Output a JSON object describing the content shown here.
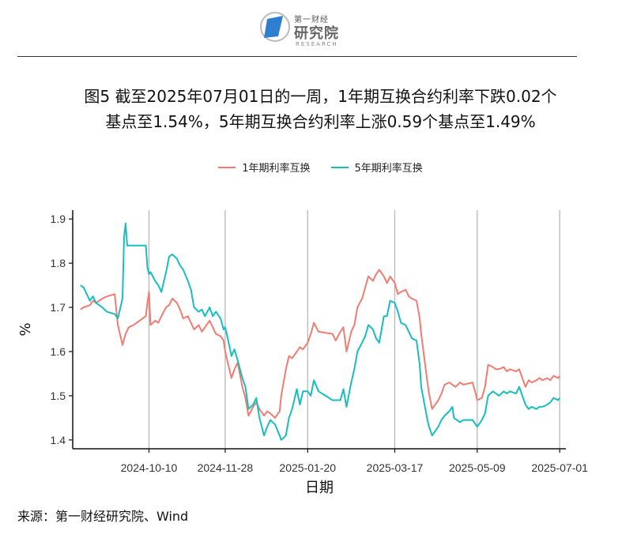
{
  "header": {
    "logo_small": "第一财经",
    "logo_big": "研究院",
    "logo_sub": "RESEARCH"
  },
  "title": {
    "line1": "图5  截至2025年07月01日的一周，1年期互换合约利率下跌0.02个",
    "line2": "基点至1.54%，5年期互换合约利率上涨0.59个基点至1.49%"
  },
  "source": "来源：第一财经研究院、Wind",
  "colors": {
    "series1": "#F07C73",
    "series2": "#18BDBE",
    "axis": "#111111",
    "grid": "#B3B3B3"
  },
  "chart_data": {
    "type": "line",
    "title": "",
    "xlabel": "日期",
    "ylabel": "%",
    "ylim": [
      1.38,
      1.92
    ],
    "yticks": [
      1.4,
      1.5,
      1.6,
      1.7,
      1.8,
      1.9
    ],
    "xlim": [
      "2024-08-22",
      "2025-07-05"
    ],
    "xticks": [
      "2024-10-10",
      "2024-11-28",
      "2025-01-20",
      "2025-03-17",
      "2025-05-09",
      "2025-07-01"
    ],
    "grid": "vertical",
    "legend_position": "top",
    "series": [
      {
        "name": "1年期利率互换",
        "color": "#F07C73",
        "points": [
          [
            "2024-08-27",
            1.695
          ],
          [
            "2024-08-29",
            1.7
          ],
          [
            "2024-09-02",
            1.705
          ],
          [
            "2024-09-04",
            1.715
          ],
          [
            "2024-09-06",
            1.71
          ],
          [
            "2024-09-10",
            1.72
          ],
          [
            "2024-09-13",
            1.725
          ],
          [
            "2024-09-18",
            1.73
          ],
          [
            "2024-09-20",
            1.66
          ],
          [
            "2024-09-23",
            1.615
          ],
          [
            "2024-09-25",
            1.64
          ],
          [
            "2024-09-27",
            1.655
          ],
          [
            "2024-09-30",
            1.66
          ],
          [
            "2024-10-08",
            1.68
          ],
          [
            "2024-10-09",
            1.71
          ],
          [
            "2024-10-10",
            1.735
          ],
          [
            "2024-10-11",
            1.66
          ],
          [
            "2024-10-14",
            1.67
          ],
          [
            "2024-10-16",
            1.665
          ],
          [
            "2024-10-18",
            1.68
          ],
          [
            "2024-10-21",
            1.7
          ],
          [
            "2024-10-23",
            1.705
          ],
          [
            "2024-10-25",
            1.72
          ],
          [
            "2024-10-28",
            1.71
          ],
          [
            "2024-10-30",
            1.695
          ],
          [
            "2024-11-01",
            1.675
          ],
          [
            "2024-11-04",
            1.68
          ],
          [
            "2024-11-06",
            1.665
          ],
          [
            "2024-11-08",
            1.65
          ],
          [
            "2024-11-11",
            1.66
          ],
          [
            "2024-11-13",
            1.645
          ],
          [
            "2024-11-15",
            1.655
          ],
          [
            "2024-11-18",
            1.67
          ],
          [
            "2024-11-20",
            1.655
          ],
          [
            "2024-11-22",
            1.64
          ],
          [
            "2024-11-25",
            1.635
          ],
          [
            "2024-11-27",
            1.625
          ],
          [
            "2024-11-28",
            1.6
          ],
          [
            "2024-11-29",
            1.585
          ],
          [
            "2024-12-02",
            1.54
          ],
          [
            "2024-12-04",
            1.56
          ],
          [
            "2024-12-06",
            1.575
          ],
          [
            "2024-12-09",
            1.52
          ],
          [
            "2024-12-11",
            1.495
          ],
          [
            "2024-12-13",
            1.455
          ],
          [
            "2024-12-16",
            1.475
          ],
          [
            "2024-12-18",
            1.485
          ],
          [
            "2024-12-20",
            1.47
          ],
          [
            "2024-12-23",
            1.455
          ],
          [
            "2024-12-25",
            1.465
          ],
          [
            "2024-12-27",
            1.46
          ],
          [
            "2024-12-30",
            1.45
          ],
          [
            "2025-01-02",
            1.465
          ],
          [
            "2025-01-03",
            1.5
          ],
          [
            "2025-01-06",
            1.56
          ],
          [
            "2025-01-08",
            1.59
          ],
          [
            "2025-01-10",
            1.585
          ],
          [
            "2025-01-13",
            1.6
          ],
          [
            "2025-01-15",
            1.61
          ],
          [
            "2025-01-17",
            1.605
          ],
          [
            "2025-01-20",
            1.62
          ],
          [
            "2025-01-22",
            1.64
          ],
          [
            "2025-01-24",
            1.665
          ],
          [
            "2025-01-27",
            1.645
          ],
          [
            "2025-02-05",
            1.64
          ],
          [
            "2025-02-07",
            1.625
          ],
          [
            "2025-02-10",
            1.645
          ],
          [
            "2025-02-12",
            1.655
          ],
          [
            "2025-02-14",
            1.6
          ],
          [
            "2025-02-17",
            1.645
          ],
          [
            "2025-02-19",
            1.66
          ],
          [
            "2025-02-21",
            1.7
          ],
          [
            "2025-02-24",
            1.72
          ],
          [
            "2025-02-26",
            1.745
          ],
          [
            "2025-02-28",
            1.77
          ],
          [
            "2025-03-03",
            1.76
          ],
          [
            "2025-03-05",
            1.775
          ],
          [
            "2025-03-07",
            1.785
          ],
          [
            "2025-03-10",
            1.77
          ],
          [
            "2025-03-12",
            1.755
          ],
          [
            "2025-03-14",
            1.77
          ],
          [
            "2025-03-17",
            1.755
          ],
          [
            "2025-03-19",
            1.73
          ],
          [
            "2025-03-21",
            1.735
          ],
          [
            "2025-03-24",
            1.74
          ],
          [
            "2025-03-26",
            1.725
          ],
          [
            "2025-03-28",
            1.72
          ],
          [
            "2025-03-31",
            1.715
          ],
          [
            "2025-04-02",
            1.675
          ],
          [
            "2025-04-03",
            1.64
          ],
          [
            "2025-04-07",
            1.53
          ],
          [
            "2025-04-08",
            1.505
          ],
          [
            "2025-04-10",
            1.47
          ],
          [
            "2025-04-14",
            1.49
          ],
          [
            "2025-04-16",
            1.505
          ],
          [
            "2025-04-18",
            1.525
          ],
          [
            "2025-04-21",
            1.53
          ],
          [
            "2025-04-23",
            1.525
          ],
          [
            "2025-04-25",
            1.52
          ],
          [
            "2025-04-28",
            1.53
          ],
          [
            "2025-04-30",
            1.525
          ],
          [
            "2025-05-06",
            1.53
          ],
          [
            "2025-05-08",
            1.505
          ],
          [
            "2025-05-09",
            1.49
          ],
          [
            "2025-05-12",
            1.495
          ],
          [
            "2025-05-14",
            1.52
          ],
          [
            "2025-05-16",
            1.57
          ],
          [
            "2025-05-19",
            1.565
          ],
          [
            "2025-05-21",
            1.56
          ],
          [
            "2025-05-23",
            1.56
          ],
          [
            "2025-05-26",
            1.565
          ],
          [
            "2025-05-28",
            1.555
          ],
          [
            "2025-05-30",
            1.56
          ],
          [
            "2025-06-03",
            1.555
          ],
          [
            "2025-06-05",
            1.56
          ],
          [
            "2025-06-09",
            1.52
          ],
          [
            "2025-06-11",
            1.535
          ],
          [
            "2025-06-13",
            1.53
          ],
          [
            "2025-06-16",
            1.535
          ],
          [
            "2025-06-18",
            1.54
          ],
          [
            "2025-06-20",
            1.535
          ],
          [
            "2025-06-23",
            1.54
          ],
          [
            "2025-06-25",
            1.535
          ],
          [
            "2025-06-27",
            1.545
          ],
          [
            "2025-06-30",
            1.54
          ],
          [
            "2025-07-01",
            1.545
          ]
        ]
      },
      {
        "name": "5年期利率互换",
        "color": "#18BDBE",
        "points": [
          [
            "2024-08-27",
            1.75
          ],
          [
            "2024-08-29",
            1.745
          ],
          [
            "2024-09-02",
            1.715
          ],
          [
            "2024-09-04",
            1.725
          ],
          [
            "2024-09-06",
            1.71
          ],
          [
            "2024-09-10",
            1.7
          ],
          [
            "2024-09-13",
            1.69
          ],
          [
            "2024-09-18",
            1.685
          ],
          [
            "2024-09-20",
            1.675
          ],
          [
            "2024-09-23",
            1.72
          ],
          [
            "2024-09-24",
            1.86
          ],
          [
            "2024-09-25",
            1.89
          ],
          [
            "2024-09-26",
            1.84
          ],
          [
            "2024-09-27",
            1.84
          ],
          [
            "2024-09-30",
            1.84
          ],
          [
            "2024-10-08",
            1.84
          ],
          [
            "2024-10-09",
            1.79
          ],
          [
            "2024-10-10",
            1.775
          ],
          [
            "2024-10-11",
            1.78
          ],
          [
            "2024-10-14",
            1.76
          ],
          [
            "2024-10-16",
            1.75
          ],
          [
            "2024-10-18",
            1.735
          ],
          [
            "2024-10-21",
            1.78
          ],
          [
            "2024-10-23",
            1.815
          ],
          [
            "2024-10-25",
            1.82
          ],
          [
            "2024-10-28",
            1.81
          ],
          [
            "2024-10-30",
            1.795
          ],
          [
            "2024-11-01",
            1.785
          ],
          [
            "2024-11-04",
            1.76
          ],
          [
            "2024-11-06",
            1.74
          ],
          [
            "2024-11-08",
            1.7
          ],
          [
            "2024-11-11",
            1.69
          ],
          [
            "2024-11-13",
            1.695
          ],
          [
            "2024-11-15",
            1.68
          ],
          [
            "2024-11-18",
            1.7
          ],
          [
            "2024-11-20",
            1.68
          ],
          [
            "2024-11-22",
            1.69
          ],
          [
            "2024-11-25",
            1.675
          ],
          [
            "2024-11-27",
            1.65
          ],
          [
            "2024-11-28",
            1.655
          ],
          [
            "2024-11-29",
            1.64
          ],
          [
            "2024-12-02",
            1.59
          ],
          [
            "2024-12-04",
            1.605
          ],
          [
            "2024-12-06",
            1.58
          ],
          [
            "2024-12-09",
            1.54
          ],
          [
            "2024-12-11",
            1.52
          ],
          [
            "2024-12-13",
            1.47
          ],
          [
            "2024-12-16",
            1.48
          ],
          [
            "2024-12-18",
            1.495
          ],
          [
            "2024-12-20",
            1.45
          ],
          [
            "2024-12-23",
            1.41
          ],
          [
            "2024-12-25",
            1.43
          ],
          [
            "2024-12-27",
            1.445
          ],
          [
            "2024-12-30",
            1.435
          ],
          [
            "2025-01-02",
            1.41
          ],
          [
            "2025-01-03",
            1.4
          ],
          [
            "2025-01-06",
            1.41
          ],
          [
            "2025-01-08",
            1.45
          ],
          [
            "2025-01-10",
            1.47
          ],
          [
            "2025-01-13",
            1.515
          ],
          [
            "2025-01-15",
            1.48
          ],
          [
            "2025-01-17",
            1.51
          ],
          [
            "2025-01-20",
            1.51
          ],
          [
            "2025-01-22",
            1.5
          ],
          [
            "2025-01-24",
            1.535
          ],
          [
            "2025-01-27",
            1.51
          ],
          [
            "2025-02-05",
            1.49
          ],
          [
            "2025-02-07",
            1.49
          ],
          [
            "2025-02-10",
            1.49
          ],
          [
            "2025-02-12",
            1.515
          ],
          [
            "2025-02-14",
            1.475
          ],
          [
            "2025-02-17",
            1.53
          ],
          [
            "2025-02-19",
            1.56
          ],
          [
            "2025-02-21",
            1.6
          ],
          [
            "2025-02-24",
            1.62
          ],
          [
            "2025-02-26",
            1.635
          ],
          [
            "2025-02-28",
            1.66
          ],
          [
            "2025-03-03",
            1.65
          ],
          [
            "2025-03-05",
            1.63
          ],
          [
            "2025-03-07",
            1.62
          ],
          [
            "2025-03-10",
            1.68
          ],
          [
            "2025-03-12",
            1.68
          ],
          [
            "2025-03-14",
            1.715
          ],
          [
            "2025-03-17",
            1.71
          ],
          [
            "2025-03-19",
            1.69
          ],
          [
            "2025-03-21",
            1.665
          ],
          [
            "2025-03-24",
            1.66
          ],
          [
            "2025-03-26",
            1.645
          ],
          [
            "2025-03-28",
            1.63
          ],
          [
            "2025-03-31",
            1.625
          ],
          [
            "2025-04-02",
            1.57
          ],
          [
            "2025-04-03",
            1.52
          ],
          [
            "2025-04-07",
            1.445
          ],
          [
            "2025-04-08",
            1.43
          ],
          [
            "2025-04-10",
            1.41
          ],
          [
            "2025-04-14",
            1.43
          ],
          [
            "2025-04-16",
            1.445
          ],
          [
            "2025-04-18",
            1.455
          ],
          [
            "2025-04-21",
            1.465
          ],
          [
            "2025-04-23",
            1.475
          ],
          [
            "2025-04-24",
            1.45
          ],
          [
            "2025-04-28",
            1.44
          ],
          [
            "2025-04-30",
            1.445
          ],
          [
            "2025-05-06",
            1.445
          ],
          [
            "2025-05-08",
            1.435
          ],
          [
            "2025-05-09",
            1.43
          ],
          [
            "2025-05-12",
            1.445
          ],
          [
            "2025-05-14",
            1.46
          ],
          [
            "2025-05-16",
            1.5
          ],
          [
            "2025-05-19",
            1.51
          ],
          [
            "2025-05-21",
            1.505
          ],
          [
            "2025-05-23",
            1.5
          ],
          [
            "2025-05-26",
            1.51
          ],
          [
            "2025-05-28",
            1.505
          ],
          [
            "2025-05-30",
            1.51
          ],
          [
            "2025-06-03",
            1.505
          ],
          [
            "2025-06-05",
            1.52
          ],
          [
            "2025-06-09",
            1.48
          ],
          [
            "2025-06-11",
            1.47
          ],
          [
            "2025-06-13",
            1.475
          ],
          [
            "2025-06-16",
            1.47
          ],
          [
            "2025-06-18",
            1.475
          ],
          [
            "2025-06-20",
            1.475
          ],
          [
            "2025-06-23",
            1.48
          ],
          [
            "2025-06-25",
            1.485
          ],
          [
            "2025-06-27",
            1.495
          ],
          [
            "2025-06-30",
            1.49
          ],
          [
            "2025-07-01",
            1.495
          ]
        ]
      }
    ]
  }
}
